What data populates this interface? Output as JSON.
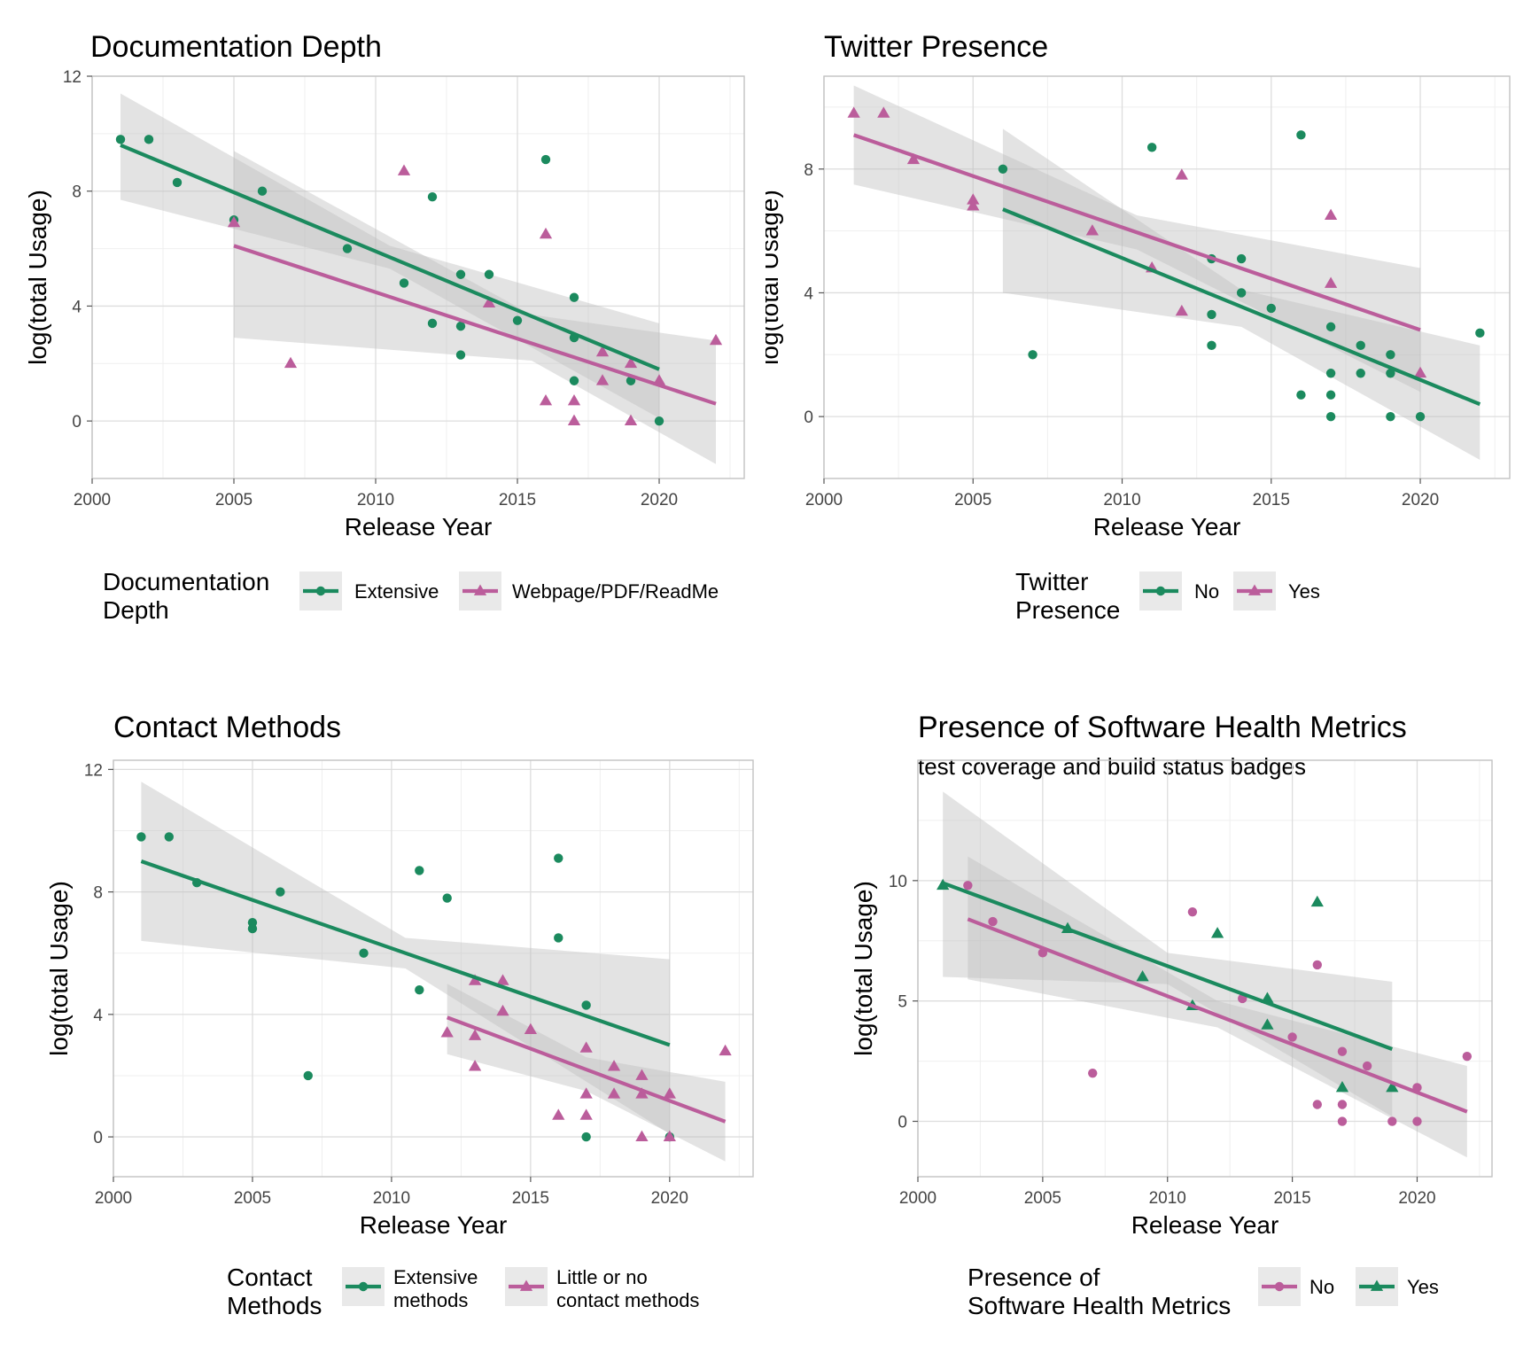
{
  "colors": {
    "green": "#1b8a5e",
    "pink": "#bb5d9b",
    "ribbon": "#bdbdbd",
    "panel_border": "#c2c2c2",
    "grid_major": "#dddddd",
    "grid_minor": "#efefef"
  },
  "chart_data": [
    {
      "type": "scatter",
      "title": "Documentation Depth",
      "subtitle": "",
      "xlabel": "Release Year",
      "ylabel": "log(total Usage)",
      "xlim": [
        2000,
        2023
      ],
      "ylim": [
        -2,
        12
      ],
      "xticks": [
        2000,
        2005,
        2010,
        2015,
        2020
      ],
      "yticks": [
        0,
        4,
        8,
        12
      ],
      "grid": true,
      "legend": {
        "title": [
          "Documentation",
          "Depth"
        ],
        "position": "bottom"
      },
      "series": [
        {
          "name": "Extensive",
          "color": "#1b8a5e",
          "shape": "circle",
          "points": [
            [
              2001,
              9.8
            ],
            [
              2002,
              9.8
            ],
            [
              2003,
              8.3
            ],
            [
              2005,
              7.0
            ],
            [
              2006,
              8.0
            ],
            [
              2009,
              6.0
            ],
            [
              2011,
              4.8
            ],
            [
              2012,
              7.8
            ],
            [
              2012,
              3.4
            ],
            [
              2013,
              5.1
            ],
            [
              2013,
              3.3
            ],
            [
              2013,
              2.3
            ],
            [
              2014,
              5.1
            ],
            [
              2015,
              3.5
            ],
            [
              2016,
              9.1
            ],
            [
              2017,
              4.3
            ],
            [
              2017,
              2.9
            ],
            [
              2017,
              1.4
            ],
            [
              2019,
              1.4
            ],
            [
              2020,
              0.0
            ]
          ],
          "fit": [
            [
              2001,
              9.6
            ],
            [
              2020,
              1.8
            ]
          ],
          "ci": {
            "x": [
              2001,
              2010.5,
              2020
            ],
            "upper": [
              11.4,
              6.1,
              3.4
            ],
            "lower": [
              7.7,
              5.3,
              0.1
            ]
          }
        },
        {
          "name": "Webpage/PDF/ReadMe",
          "color": "#bb5d9b",
          "shape": "triangle",
          "points": [
            [
              2005,
              6.9
            ],
            [
              2007,
              2.0
            ],
            [
              2011,
              8.7
            ],
            [
              2014,
              4.1
            ],
            [
              2016,
              6.5
            ],
            [
              2016,
              0.7
            ],
            [
              2017,
              0.7
            ],
            [
              2017,
              0.0
            ],
            [
              2018,
              2.4
            ],
            [
              2018,
              1.4
            ],
            [
              2019,
              2.0
            ],
            [
              2019,
              0.0
            ],
            [
              2020,
              1.4
            ],
            [
              2022,
              2.8
            ]
          ],
          "fit": [
            [
              2005,
              6.1
            ],
            [
              2022,
              0.6
            ]
          ],
          "ci": {
            "x": [
              2005,
              2015.5,
              2022
            ],
            "upper": [
              9.4,
              3.7,
              2.8
            ],
            "lower": [
              2.9,
              2.1,
              -1.5
            ]
          }
        }
      ]
    },
    {
      "type": "scatter",
      "title": "Twitter Presence",
      "subtitle": "",
      "xlabel": "Release Year",
      "ylabel": "log(total Usage)",
      "xlim": [
        2000,
        2023
      ],
      "ylim": [
        -2,
        11
      ],
      "xticks": [
        2000,
        2005,
        2010,
        2015,
        2020
      ],
      "yticks": [
        0,
        4,
        8
      ],
      "grid": true,
      "legend": {
        "title": [
          "Twitter",
          "Presence"
        ],
        "position": "bottom"
      },
      "series": [
        {
          "name": "No",
          "color": "#1b8a5e",
          "shape": "circle",
          "points": [
            [
              2006,
              8.0
            ],
            [
              2007,
              2.0
            ],
            [
              2011,
              8.7
            ],
            [
              2013,
              5.1
            ],
            [
              2013,
              3.3
            ],
            [
              2013,
              2.3
            ],
            [
              2014,
              5.1
            ],
            [
              2014,
              4.0
            ],
            [
              2015,
              3.5
            ],
            [
              2016,
              9.1
            ],
            [
              2016,
              0.7
            ],
            [
              2017,
              2.9
            ],
            [
              2017,
              1.4
            ],
            [
              2017,
              0.7
            ],
            [
              2017,
              0.0
            ],
            [
              2018,
              2.3
            ],
            [
              2018,
              1.4
            ],
            [
              2019,
              2.0
            ],
            [
              2019,
              1.4
            ],
            [
              2019,
              0.0
            ],
            [
              2020,
              0.0
            ],
            [
              2022,
              2.7
            ]
          ],
          "fit": [
            [
              2006,
              6.7
            ],
            [
              2022,
              0.4
            ]
          ],
          "ci": {
            "x": [
              2006,
              2014,
              2022
            ],
            "upper": [
              9.3,
              4.1,
              2.3
            ],
            "lower": [
              4.0,
              2.9,
              -1.4
            ]
          }
        },
        {
          "name": "Yes",
          "color": "#bb5d9b",
          "shape": "triangle",
          "points": [
            [
              2001,
              9.8
            ],
            [
              2002,
              9.8
            ],
            [
              2003,
              8.3
            ],
            [
              2005,
              7.0
            ],
            [
              2005,
              6.8
            ],
            [
              2009,
              6.0
            ],
            [
              2011,
              4.8
            ],
            [
              2012,
              7.8
            ],
            [
              2012,
              3.4
            ],
            [
              2017,
              6.5
            ],
            [
              2017,
              4.3
            ],
            [
              2020,
              1.4
            ]
          ],
          "fit": [
            [
              2001,
              9.1
            ],
            [
              2020,
              2.8
            ]
          ],
          "ci": {
            "x": [
              2001,
              2010.5,
              2020
            ],
            "upper": [
              10.7,
              6.5,
              4.8
            ],
            "lower": [
              7.5,
              5.4,
              0.8
            ]
          }
        }
      ]
    },
    {
      "type": "scatter",
      "title": "Contact Methods",
      "subtitle": "",
      "xlabel": "Release Year",
      "ylabel": "log(total Usage)",
      "xlim": [
        2000,
        2023
      ],
      "ylim": [
        -1.3,
        12.3
      ],
      "xticks": [
        2000,
        2005,
        2010,
        2015,
        2020
      ],
      "yticks": [
        0,
        4,
        8,
        12
      ],
      "grid": true,
      "legend": {
        "title": [
          "Contact",
          "Methods"
        ],
        "position": "bottom"
      },
      "series": [
        {
          "name": "Extensive methods",
          "label_lines": [
            "Extensive",
            "methods"
          ],
          "color": "#1b8a5e",
          "shape": "circle",
          "points": [
            [
              2001,
              9.8
            ],
            [
              2002,
              9.8
            ],
            [
              2003,
              8.3
            ],
            [
              2005,
              7.0
            ],
            [
              2005,
              6.8
            ],
            [
              2006,
              8.0
            ],
            [
              2007,
              2.0
            ],
            [
              2009,
              6.0
            ],
            [
              2011,
              8.7
            ],
            [
              2011,
              4.8
            ],
            [
              2012,
              7.8
            ],
            [
              2016,
              9.1
            ],
            [
              2016,
              6.5
            ],
            [
              2017,
              4.3
            ],
            [
              2017,
              0.0
            ],
            [
              2020,
              0.0
            ]
          ],
          "fit": [
            [
              2001,
              9.0
            ],
            [
              2020,
              3.0
            ]
          ],
          "ci": {
            "x": [
              2001,
              2010.5,
              2020
            ],
            "upper": [
              11.6,
              6.5,
              5.8
            ],
            "lower": [
              6.4,
              5.5,
              0.1
            ]
          }
        },
        {
          "name": "Little or no contact methods",
          "label_lines": [
            "Little or no",
            "contact methods"
          ],
          "color": "#bb5d9b",
          "shape": "triangle",
          "points": [
            [
              2012,
              3.4
            ],
            [
              2013,
              5.1
            ],
            [
              2013,
              3.3
            ],
            [
              2013,
              2.3
            ],
            [
              2014,
              5.1
            ],
            [
              2014,
              4.1
            ],
            [
              2015,
              3.5
            ],
            [
              2016,
              0.7
            ],
            [
              2017,
              2.9
            ],
            [
              2017,
              1.4
            ],
            [
              2017,
              0.7
            ],
            [
              2018,
              2.3
            ],
            [
              2018,
              1.4
            ],
            [
              2019,
              2.0
            ],
            [
              2019,
              1.4
            ],
            [
              2019,
              0.0
            ],
            [
              2020,
              1.4
            ],
            [
              2020,
              0.0
            ],
            [
              2022,
              2.8
            ]
          ],
          "fit": [
            [
              2012,
              3.9
            ],
            [
              2022,
              0.5
            ]
          ],
          "ci": {
            "x": [
              2012,
              2017,
              2022
            ],
            "upper": [
              5.0,
              2.6,
              1.8
            ],
            "lower": [
              2.7,
              1.5,
              -0.8
            ]
          }
        }
      ]
    },
    {
      "type": "scatter",
      "title": "Presence of Software Health Metrics",
      "subtitle": "test coverage and build status badges",
      "xlabel": "Release Year",
      "ylabel": "log(total Usage)",
      "xlim": [
        2000,
        2023
      ],
      "ylim": [
        -2.3,
        15
      ],
      "xticks": [
        2000,
        2005,
        2010,
        2015,
        2020
      ],
      "yticks": [
        0,
        5,
        10
      ],
      "grid": true,
      "legend": {
        "title": [
          "Presence of",
          "Software Health Metrics"
        ],
        "position": "bottom"
      },
      "series": [
        {
          "name": "No",
          "color": "#bb5d9b",
          "shape": "circle",
          "points": [
            [
              2002,
              9.8
            ],
            [
              2003,
              8.3
            ],
            [
              2005,
              7.0
            ],
            [
              2007,
              2.0
            ],
            [
              2011,
              8.7
            ],
            [
              2013,
              5.1
            ],
            [
              2015,
              3.5
            ],
            [
              2016,
              6.5
            ],
            [
              2016,
              0.7
            ],
            [
              2017,
              2.9
            ],
            [
              2017,
              0.7
            ],
            [
              2017,
              0.0
            ],
            [
              2018,
              2.3
            ],
            [
              2019,
              0.0
            ],
            [
              2020,
              1.4
            ],
            [
              2020,
              0.0
            ],
            [
              2022,
              2.7
            ]
          ],
          "fit": [
            [
              2002,
              8.4
            ],
            [
              2022,
              0.4
            ]
          ],
          "ci": {
            "x": [
              2002,
              2012,
              2022
            ],
            "upper": [
              11.0,
              5.0,
              2.3
            ],
            "lower": [
              5.9,
              3.9,
              -1.5
            ]
          }
        },
        {
          "name": "Yes",
          "color": "#1b8a5e",
          "shape": "triangle",
          "points": [
            [
              2001,
              9.8
            ],
            [
              2006,
              8.0
            ],
            [
              2009,
              6.0
            ],
            [
              2011,
              4.8
            ],
            [
              2012,
              7.8
            ],
            [
              2014,
              5.1
            ],
            [
              2014,
              4.0
            ],
            [
              2016,
              9.1
            ],
            [
              2017,
              1.4
            ],
            [
              2019,
              1.4
            ]
          ],
          "fit": [
            [
              2001,
              9.9
            ],
            [
              2019,
              3.0
            ]
          ],
          "ci": {
            "x": [
              2001,
              2010,
              2019
            ],
            "upper": [
              13.7,
              7.0,
              5.8
            ],
            "lower": [
              6.0,
              5.7,
              0.2
            ]
          }
        }
      ]
    }
  ]
}
